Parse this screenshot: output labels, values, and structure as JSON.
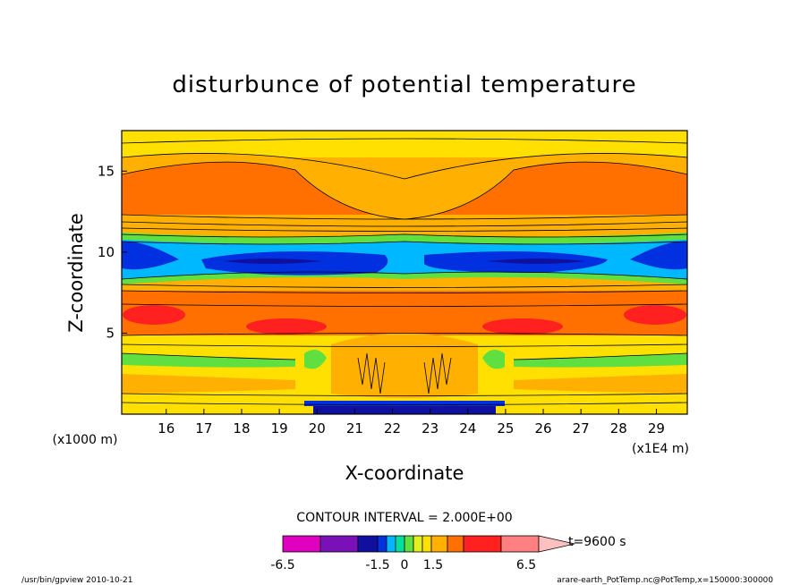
{
  "chart_data": {
    "type": "heatmap",
    "title": "disturbunce of potential temperature",
    "xlabel": "X-coordinate",
    "ylabel": "Z-coordinate",
    "x_unit_label": "(x1E4 m)",
    "y_unit_label": "(x1000 m)",
    "x_ticks": [
      16,
      17,
      18,
      19,
      20,
      21,
      22,
      23,
      24,
      25,
      26,
      27,
      28,
      29
    ],
    "y_ticks": [
      5,
      10,
      15
    ],
    "xlim": [
      15,
      30
    ],
    "ylim": [
      0,
      17.5
    ],
    "contour_interval_text": "CONTOUR INTERVAL = 2.000E+00",
    "time_label": "t=9600 s",
    "colorbar": {
      "labels": [
        "-6.5",
        "-1.5",
        "0",
        "1.5",
        "6.5"
      ],
      "colors": [
        "#e000c0",
        "#7a10b8",
        "#1010a0",
        "#0030e0",
        "#00b8ff",
        "#00e0a0",
        "#60e040",
        "#e0f020",
        "#ffe000",
        "#ffb000",
        "#ff7000",
        "#ff2020",
        "#ff8080",
        "#ffc0c0"
      ]
    },
    "layers_z": [
      {
        "z": 0.0,
        "value": "blue"
      },
      {
        "z": 1.0,
        "value": "yellow"
      },
      {
        "z": 3.0,
        "value": "green"
      },
      {
        "z": 5.0,
        "value": "orange"
      },
      {
        "z": 6.5,
        "value": "red"
      },
      {
        "z": 8.0,
        "value": "orange"
      },
      {
        "z": 9.0,
        "value": "cyan"
      },
      {
        "z": 10.0,
        "value": "blue"
      },
      {
        "z": 11.5,
        "value": "green"
      },
      {
        "z": 12.5,
        "value": "orange"
      },
      {
        "z": 16.5,
        "value": "yellow"
      }
    ]
  },
  "footer": {
    "left": "/usr/bin/gpview   2010-10-21",
    "right": "arare-earth_PotTemp.nc@PotTemp,x=150000:300000"
  }
}
